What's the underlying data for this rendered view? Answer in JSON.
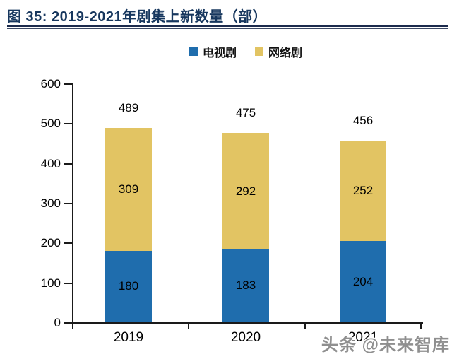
{
  "figure": {
    "title": "图 35: 2019-2021年剧集上新数量（部）",
    "title_color": "#17375E"
  },
  "chart_data": {
    "type": "bar",
    "stacked": true,
    "title": "2019-2021年剧集上新数量（部）",
    "categories": [
      "2019",
      "2020",
      "2021"
    ],
    "series": [
      {
        "name": "电视剧",
        "color": "#1F6DAD",
        "values": [
          180,
          183,
          204
        ]
      },
      {
        "name": "网络剧",
        "color": "#E2C463",
        "values": [
          309,
          292,
          252
        ]
      }
    ],
    "totals": [
      489,
      475,
      456
    ],
    "ylim": [
      0,
      600
    ],
    "yticks": [
      0,
      100,
      200,
      300,
      400,
      500,
      600
    ],
    "grid": false,
    "legend_position": "top",
    "bar_label_color": "#000000",
    "axis_color": "#1a1a1a"
  },
  "watermark": {
    "text": "头条 @未来智库"
  }
}
